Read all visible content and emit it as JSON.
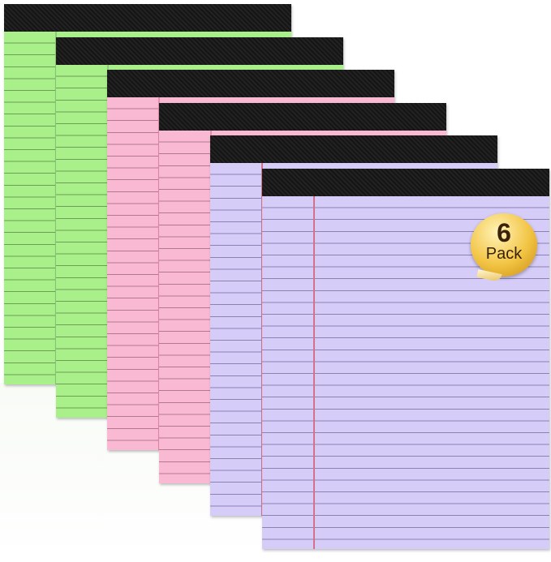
{
  "product": {
    "pads": [
      {
        "color": "green",
        "paper": "#a9ef8a",
        "line": "#6a9f55",
        "margin": "#8fc97a"
      },
      {
        "color": "green",
        "paper": "#a9ef8a",
        "line": "#6a9f55",
        "margin": "#8fc97a"
      },
      {
        "color": "pink",
        "paper": "#fab9d2",
        "line": "#b07a8c",
        "margin": "#e58aa8"
      },
      {
        "color": "pink",
        "paper": "#fab9d2",
        "line": "#b07a8c",
        "margin": "#e58aa8"
      },
      {
        "color": "purple",
        "paper": "#d6ccf8",
        "line": "#8a82b3",
        "margin": "#d5708a"
      },
      {
        "color": "purple",
        "paper": "#d6ccf8",
        "line": "#8a82b3",
        "margin": "#d5708a"
      }
    ],
    "badge": {
      "number": "6",
      "label": "Pack",
      "color": "#f2c443"
    }
  }
}
